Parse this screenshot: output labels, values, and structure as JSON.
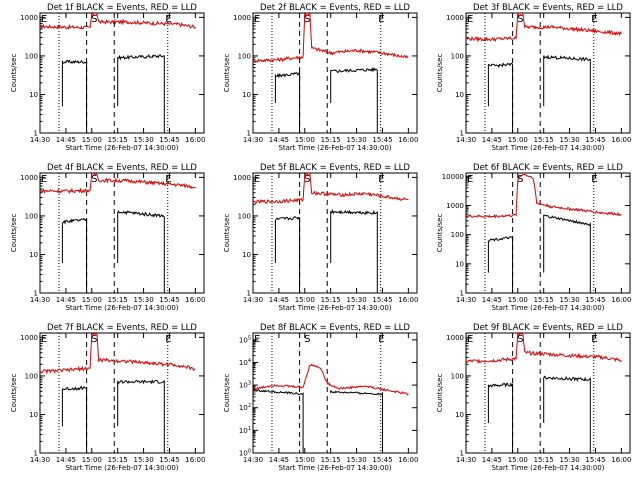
{
  "chart_data": [
    {
      "type": "line",
      "title": "Det 1f BLACK = Events, RED = LLD",
      "xlabel": "Start Time (26-Feb-07 14:30:00)",
      "ylabel": "Counts/sec",
      "y_ticks": [
        "1",
        "10",
        "100",
        "1000"
      ],
      "ylim": [
        1,
        1300
      ],
      "red": [
        [
          0,
          580
        ],
        [
          15,
          560
        ],
        [
          29,
          545
        ],
        [
          30,
          1200
        ],
        [
          33,
          1200
        ],
        [
          34,
          760
        ],
        [
          50,
          760
        ],
        [
          80,
          660
        ],
        [
          90,
          560
        ]
      ],
      "black": [
        [
          13,
          70
        ],
        [
          27,
          70
        ],
        [
          45,
          90
        ],
        [
          72,
          100
        ]
      ],
      "black_lo": 5
    },
    {
      "type": "line",
      "title": "Det 2f BLACK = Events, RED = LLD",
      "xlabel": "Start Time (26-Feb-07 14:30:00)",
      "ylabel": "Counts/sec",
      "y_ticks": [
        "1",
        "10",
        "100",
        "1000"
      ],
      "ylim": [
        1,
        1300
      ],
      "red": [
        [
          0,
          75
        ],
        [
          15,
          80
        ],
        [
          29,
          95
        ],
        [
          30,
          1200
        ],
        [
          33,
          1200
        ],
        [
          34,
          160
        ],
        [
          45,
          120
        ],
        [
          60,
          140
        ],
        [
          75,
          120
        ],
        [
          90,
          90
        ]
      ],
      "black": [
        [
          13,
          30
        ],
        [
          27,
          35
        ],
        [
          45,
          40
        ],
        [
          72,
          45
        ]
      ],
      "black_lo": 6
    },
    {
      "type": "line",
      "title": "Det 3f BLACK = Events, RED = LLD",
      "xlabel": "Start Time (26-Feb-07 14:30:00)",
      "ylabel": "Counts/sec",
      "y_ticks": [
        "1",
        "10",
        "100",
        "1000"
      ],
      "ylim": [
        1,
        1300
      ],
      "red": [
        [
          0,
          280
        ],
        [
          15,
          270
        ],
        [
          29,
          290
        ],
        [
          30,
          1200
        ],
        [
          33,
          1200
        ],
        [
          34,
          560
        ],
        [
          50,
          560
        ],
        [
          80,
          420
        ],
        [
          90,
          380
        ]
      ],
      "black": [
        [
          13,
          55
        ],
        [
          27,
          60
        ],
        [
          45,
          95
        ],
        [
          72,
          80
        ]
      ],
      "black_lo": 5
    },
    {
      "type": "line",
      "title": "Det 4f BLACK = Events, RED = LLD",
      "xlabel": "Start Time (26-Feb-07 14:30:00)",
      "ylabel": "Counts/sec",
      "y_ticks": [
        "1",
        "10",
        "100",
        "1000"
      ],
      "ylim": [
        1,
        1300
      ],
      "red": [
        [
          0,
          450
        ],
        [
          15,
          440
        ],
        [
          29,
          460
        ],
        [
          30,
          1200
        ],
        [
          33,
          1200
        ],
        [
          34,
          840
        ],
        [
          50,
          820
        ],
        [
          80,
          640
        ],
        [
          90,
          560
        ]
      ],
      "black": [
        [
          13,
          70
        ],
        [
          27,
          80
        ],
        [
          45,
          130
        ],
        [
          72,
          100
        ]
      ],
      "black_lo": 6
    },
    {
      "type": "line",
      "title": "Det 5f BLACK = Events, RED = LLD",
      "xlabel": "Start Time (26-Feb-07 14:30:00)",
      "ylabel": "Counts/sec",
      "y_ticks": [
        "1",
        "10",
        "100",
        "1000"
      ],
      "ylim": [
        1,
        1300
      ],
      "red": [
        [
          0,
          230
        ],
        [
          15,
          240
        ],
        [
          29,
          260
        ],
        [
          30,
          1200
        ],
        [
          33,
          1200
        ],
        [
          34,
          400
        ],
        [
          50,
          350
        ],
        [
          65,
          380
        ],
        [
          80,
          300
        ],
        [
          90,
          260
        ]
      ],
      "black": [
        [
          13,
          80
        ],
        [
          27,
          90
        ],
        [
          45,
          130
        ],
        [
          72,
          120
        ]
      ],
      "black_lo": 6
    },
    {
      "type": "line",
      "title": "Det 6f BLACK = Events, RED = LLD",
      "xlabel": "Start Time (26-Feb-07 14:30:00)",
      "ylabel": "Counts/sec",
      "y_ticks": [
        "1",
        "10",
        "100",
        "1000",
        "10000"
      ],
      "ylim": [
        1,
        13000
      ],
      "red": [
        [
          0,
          430
        ],
        [
          15,
          420
        ],
        [
          29,
          460
        ],
        [
          30,
          8000
        ],
        [
          33,
          12000
        ],
        [
          39,
          9000
        ],
        [
          41,
          1200
        ],
        [
          50,
          900
        ],
        [
          80,
          550
        ],
        [
          90,
          500
        ]
      ],
      "black": [
        [
          13,
          65
        ],
        [
          27,
          80
        ],
        [
          45,
          450
        ],
        [
          72,
          220
        ]
      ],
      "black_lo": 5
    },
    {
      "type": "line",
      "title": "Det 7f BLACK = Events, RED = LLD",
      "xlabel": "Start Time (26-Feb-07 14:30:00)",
      "ylabel": "Counts/sec",
      "y_ticks": [
        "1",
        "10",
        "100",
        "1000"
      ],
      "ylim": [
        1,
        1300
      ],
      "red": [
        [
          0,
          130
        ],
        [
          15,
          140
        ],
        [
          29,
          160
        ],
        [
          30,
          1200
        ],
        [
          33,
          1200
        ],
        [
          34,
          260
        ],
        [
          50,
          240
        ],
        [
          80,
          190
        ],
        [
          90,
          150
        ]
      ],
      "black": [
        [
          13,
          45
        ],
        [
          27,
          50
        ],
        [
          45,
          70
        ],
        [
          72,
          70
        ]
      ],
      "black_lo": 5
    },
    {
      "type": "line",
      "title": "Det 8f BLACK = Events, RED = LLD",
      "xlabel": "Start Time (26-Feb-07 14:30:00)",
      "ylabel": "Counts/sec",
      "y_ticks": [
        "10^0",
        "10^1",
        "10^2",
        "10^3",
        "10^4",
        "10^5"
      ],
      "ylim": [
        1,
        200000
      ],
      "red": [
        [
          0,
          650
        ],
        [
          12,
          1000
        ],
        [
          20,
          900
        ],
        [
          29,
          800
        ],
        [
          33,
          8000
        ],
        [
          39,
          6000
        ],
        [
          43,
          1200
        ],
        [
          50,
          700
        ],
        [
          65,
          900
        ],
        [
          80,
          550
        ],
        [
          90,
          400
        ]
      ],
      "black": [
        [
          0,
          600
        ],
        [
          29,
          400
        ],
        [
          45,
          500
        ],
        [
          75,
          400
        ]
      ],
      "black_lo": 600
    },
    {
      "type": "line",
      "title": "Det 9f BLACK = Events, RED = LLD",
      "xlabel": "Start Time (26-Feb-07 14:30:00)",
      "ylabel": "Counts/sec",
      "y_ticks": [
        "1",
        "10",
        "100",
        "1000"
      ],
      "ylim": [
        1,
        1300
      ],
      "red": [
        [
          0,
          240
        ],
        [
          15,
          250
        ],
        [
          29,
          280
        ],
        [
          30,
          1200
        ],
        [
          33,
          1200
        ],
        [
          34,
          400
        ],
        [
          50,
          360
        ],
        [
          80,
          300
        ],
        [
          90,
          250
        ]
      ],
      "black": [
        [
          13,
          55
        ],
        [
          27,
          60
        ],
        [
          45,
          90
        ],
        [
          72,
          80
        ]
      ],
      "black_lo": 6
    }
  ],
  "x_ticks": [
    "14:30",
    "14:45",
    "15:00",
    "15:15",
    "15:30",
    "15:45",
    "16:00"
  ],
  "x_tick_minutes": [
    0,
    15,
    30,
    45,
    60,
    75,
    90
  ],
  "xlim_minutes": [
    0,
    95
  ],
  "dotted_minutes": [
    11,
    74
  ],
  "dashed_minutes": [
    27,
    43
  ],
  "markers": {
    "S": "S",
    "E": "E"
  },
  "marker_minutes": {
    "E_left": 0,
    "S": 29,
    "E_right": 72
  },
  "colors": {
    "red": "#e00000",
    "black": "#000000"
  }
}
